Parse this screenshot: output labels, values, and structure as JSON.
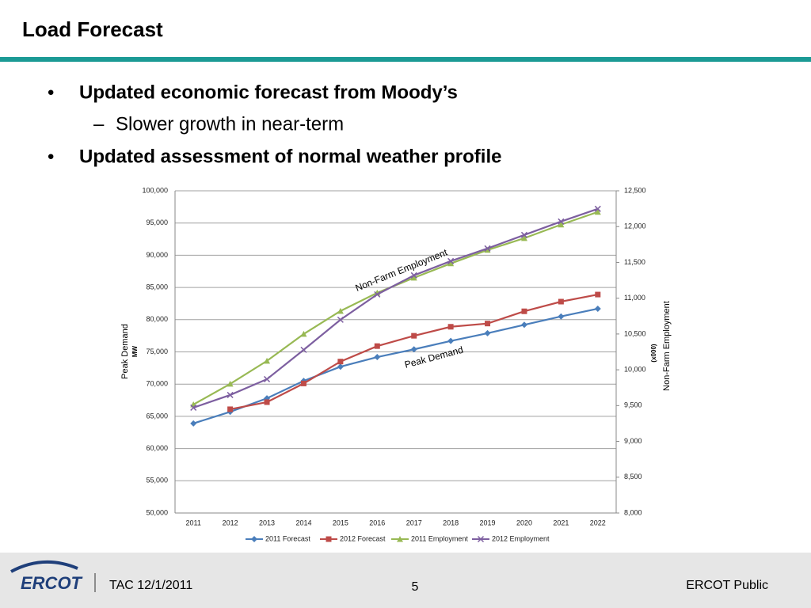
{
  "header": {
    "title": "Load Forecast"
  },
  "bullets": [
    {
      "text": "Updated economic forecast from Moody’s",
      "sub": [
        "Slower growth in near-term"
      ]
    },
    {
      "text": "Updated assessment of normal weather profile",
      "sub": []
    }
  ],
  "footer": {
    "logo": "ERCOT",
    "left": "TAC 12/1/2011",
    "page": "5",
    "right": "ERCOT Public"
  },
  "chart_data": {
    "type": "line",
    "categories": [
      "2011",
      "2012",
      "2013",
      "2014",
      "2015",
      "2016",
      "2017",
      "2018",
      "2019",
      "2020",
      "2021",
      "2022"
    ],
    "ylabel": "Peak Demand",
    "yunit": "MW",
    "y2label": "Non-Farm Employment",
    "y2unit": "(x000)",
    "ylim": [
      50000,
      100000
    ],
    "yticks": [
      {
        "value": 50000,
        "label": "50,000"
      },
      {
        "value": 55000,
        "label": "55,000"
      },
      {
        "value": 60000,
        "label": "60,000"
      },
      {
        "value": 65000,
        "label": "65,000"
      },
      {
        "value": 70000,
        "label": "70,000"
      },
      {
        "value": 75000,
        "label": "75,000"
      },
      {
        "value": 80000,
        "label": "80,000"
      },
      {
        "value": 85000,
        "label": "85,000"
      },
      {
        "value": 90000,
        "label": "90,000"
      },
      {
        "value": 95000,
        "label": "95,000"
      },
      {
        "value": 100000,
        "label": "100,000"
      }
    ],
    "y2lim": [
      8000,
      12500
    ],
    "y2ticks": [
      {
        "value": 8000,
        "label": "8,000"
      },
      {
        "value": 8500,
        "label": "8,500"
      },
      {
        "value": 9000,
        "label": "9,000"
      },
      {
        "value": 9500,
        "label": "9,500"
      },
      {
        "value": 10000,
        "label": "10,000"
      },
      {
        "value": 10500,
        "label": "10,500"
      },
      {
        "value": 11000,
        "label": "11,000"
      },
      {
        "value": 11500,
        "label": "11,500"
      },
      {
        "value": 12000,
        "label": "12,000"
      },
      {
        "value": 12500,
        "label": "12,500"
      }
    ],
    "grid": true,
    "legend": "bottom",
    "annotations": [
      {
        "text": "Non-Farm Employment"
      },
      {
        "text": "Peak Demand"
      }
    ],
    "series": [
      {
        "name": "2011 Forecast",
        "color": "#4a7ebb",
        "marker": "diamond",
        "values": [
          63900,
          65700,
          67800,
          70500,
          72700,
          74200,
          75400,
          76700,
          77900,
          79200,
          80500,
          81700
        ]
      },
      {
        "name": "2012 Forecast",
        "color": "#be4b48",
        "marker": "square",
        "values": [
          null,
          66100,
          67200,
          70100,
          73500,
          75900,
          77500,
          78900,
          79400,
          81300,
          82800,
          83900
        ]
      },
      {
        "name": "2011 Employment",
        "color": "#98b954",
        "marker": "triangle",
        "axis": "y2",
        "values": [
          9515,
          9803,
          10124,
          10500,
          10821,
          11075,
          11285,
          11485,
          11673,
          11838,
          12027,
          12204
        ]
      },
      {
        "name": "2012 Employment",
        "color": "#7d5fa0",
        "marker": "x",
        "axis": "y2",
        "values": [
          9471,
          9648,
          9869,
          10279,
          10699,
          11053,
          11319,
          11518,
          11695,
          11883,
          12071,
          12248
        ]
      }
    ]
  }
}
